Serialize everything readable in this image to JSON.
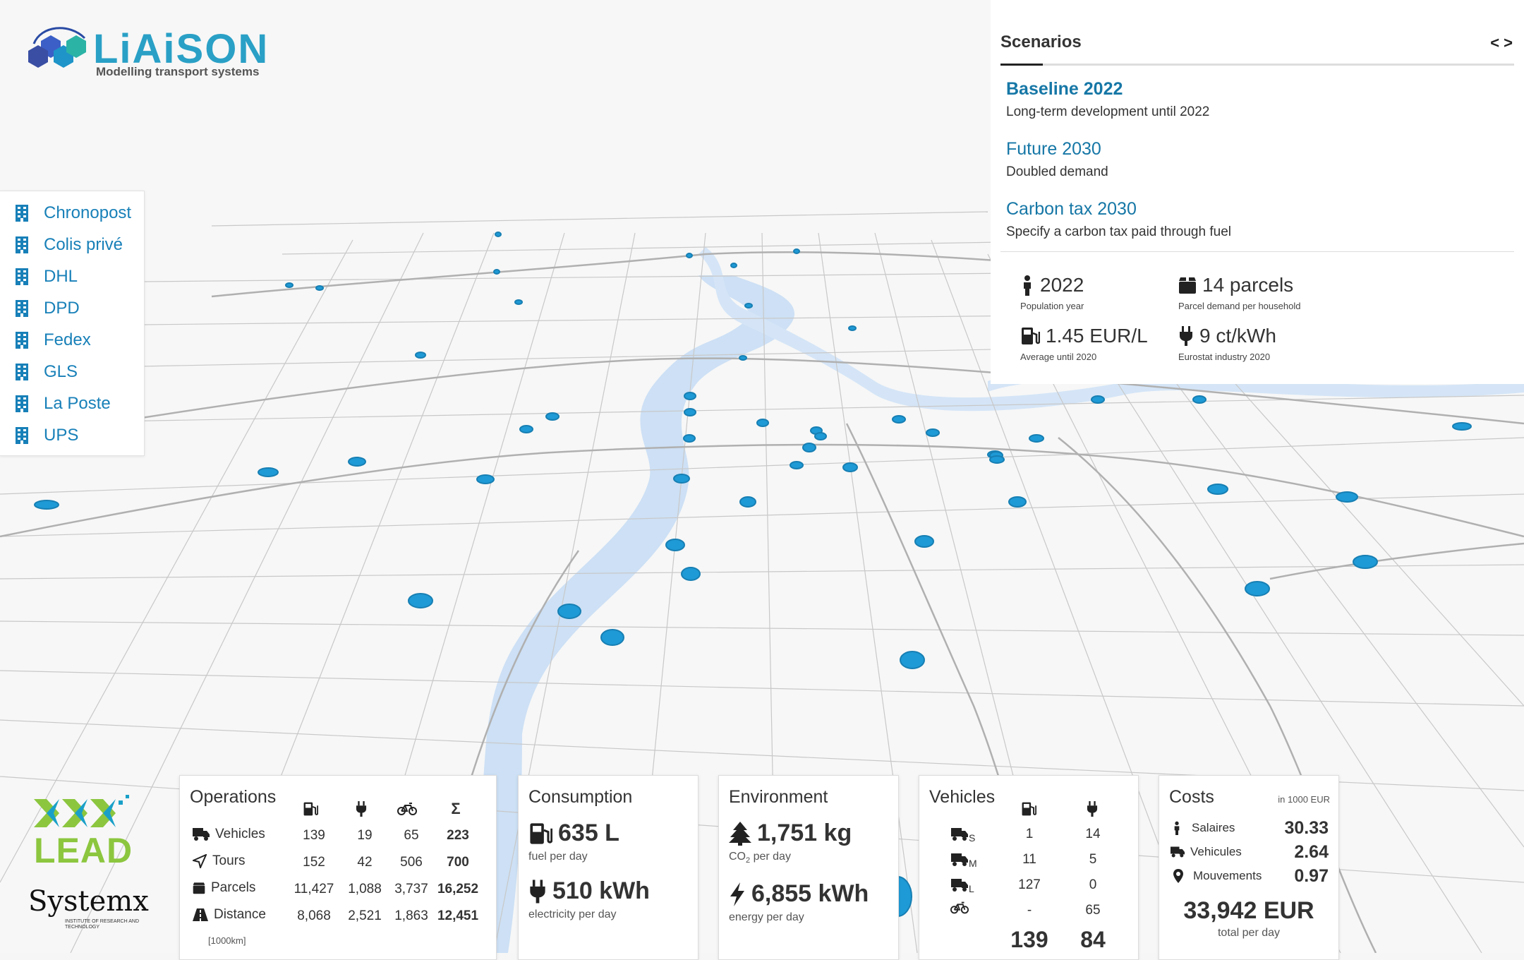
{
  "brand": {
    "name": "LiAiSON",
    "tagline": "Modelling transport systems",
    "lead": "LEAD",
    "systemx": "Systemx",
    "systemx_sub": "INSTITUTE OF RESEARCH AND TECHNOLOGY"
  },
  "companies": [
    "Chronopost",
    "Colis privé",
    "DHL",
    "DPD",
    "Fedex",
    "GLS",
    "La Poste",
    "UPS"
  ],
  "scenarios": {
    "title": "Scenarios",
    "nav": "< >",
    "items": [
      {
        "name": "Baseline 2022",
        "desc": "Long-term development until 2022"
      },
      {
        "name": "Future 2030",
        "desc": "Doubled demand"
      },
      {
        "name": "Carbon tax 2030",
        "desc": "Specify a carbon tax paid through fuel"
      }
    ],
    "params": [
      {
        "value": "2022",
        "label": "Population year",
        "icon": "person-icon"
      },
      {
        "value": "14 parcels",
        "label": "Parcel demand per household",
        "icon": "box-icon"
      },
      {
        "value": "1.45 EUR/L",
        "label": "Average until 2020",
        "icon": "fuel-icon"
      },
      {
        "value": "9 ct/kWh",
        "label": "Eurostat industry 2020",
        "icon": "plug-icon"
      }
    ]
  },
  "operations": {
    "title": "Operations",
    "unit_note": "[1000km]",
    "sum_symbol": "Σ",
    "rows": [
      {
        "label": "Vehicles",
        "values": [
          "139",
          "19",
          "65",
          "223"
        ]
      },
      {
        "label": "Tours",
        "values": [
          "152",
          "42",
          "506",
          "700"
        ]
      },
      {
        "label": "Parcels",
        "values": [
          "11,427",
          "1,088",
          "3,737",
          "16,252"
        ]
      },
      {
        "label": "Distance",
        "values": [
          "8,068",
          "2,521",
          "1,863",
          "12,451"
        ]
      }
    ]
  },
  "consumption": {
    "title": "Consumption",
    "fuel_value": "635 L",
    "fuel_label": "fuel per day",
    "elec_value": "510 kWh",
    "elec_label": "electricity per day"
  },
  "environment": {
    "title": "Environment",
    "co2_value": "1,751 kg",
    "co2_label_pre": "CO",
    "co2_label_sub": "2",
    "co2_label_post": " per day",
    "energy_value": "6,855 kWh",
    "energy_label": "energy per day"
  },
  "vehicles": {
    "title": "Vehicles",
    "rows": [
      {
        "size": "S",
        "fuel": "1",
        "elec": "14"
      },
      {
        "size": "M",
        "fuel": "11",
        "elec": "5"
      },
      {
        "size": "L",
        "fuel": "127",
        "elec": "0"
      },
      {
        "size": "",
        "fuel": "-",
        "elec": "65"
      }
    ],
    "total_fuel": "139",
    "total_elec": "84"
  },
  "costs": {
    "title": "Costs",
    "unit": "in 1000 EUR",
    "rows": [
      {
        "label": "Salaires",
        "value": "30.33"
      },
      {
        "label": "Vehicules",
        "value": "2.64"
      },
      {
        "label": "Mouvements",
        "value": "0.97"
      }
    ],
    "total": "33,942 EUR",
    "total_label": "total per day"
  },
  "colors": {
    "accent": "#1677a6",
    "marker": "#1e9ad6",
    "water": "#c9def4",
    "road": "#b5b5b5"
  }
}
